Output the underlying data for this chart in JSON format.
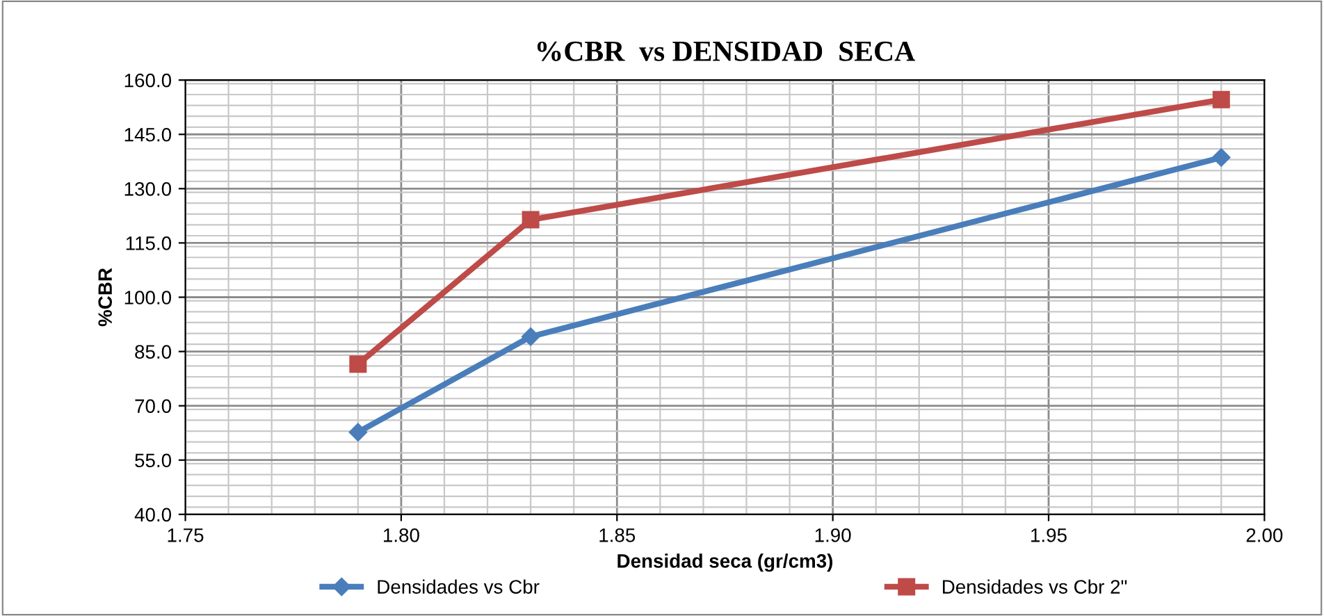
{
  "chart_data": {
    "type": "line",
    "title": "%CBR  vs DENSIDAD  SECA",
    "xlabel": "Densidad seca (gr/cm3)",
    "ylabel": "%CBR",
    "xlim": [
      1.75,
      2.0
    ],
    "xticks": [
      {
        "value": 1.75,
        "label": "1.75"
      },
      {
        "value": 1.8,
        "label": "1.80"
      },
      {
        "value": 1.85,
        "label": "1.85"
      },
      {
        "value": 1.9,
        "label": "1.90"
      },
      {
        "value": 1.95,
        "label": "1.95"
      },
      {
        "value": 2.0,
        "label": "2.00"
      }
    ],
    "ylim": [
      40,
      160
    ],
    "yticks": [
      {
        "value": 40,
        "label": "40.0"
      },
      {
        "value": 55,
        "label": "55.0"
      },
      {
        "value": 70,
        "label": "70.0"
      },
      {
        "value": 85,
        "label": "85.0"
      },
      {
        "value": 100,
        "label": "100.0"
      },
      {
        "value": 115,
        "label": "115.0"
      },
      {
        "value": 130,
        "label": "130.0"
      },
      {
        "value": 145,
        "label": "145.0"
      },
      {
        "value": 160,
        "label": "160.0"
      }
    ],
    "grid": true,
    "legend": "bottom",
    "line_style": "solid",
    "x": [
      1.79,
      1.83,
      1.99
    ],
    "series": [
      {
        "name": "Densidades vs Cbr",
        "color": "#4a7ebb",
        "marker": "diamond",
        "values": [
          62.7,
          89.1,
          138.6
        ]
      },
      {
        "name": "Densidades vs Cbr 2\"",
        "color": "#be4b48",
        "marker": "square",
        "values": [
          81.5,
          121.4,
          154.6
        ]
      }
    ]
  }
}
